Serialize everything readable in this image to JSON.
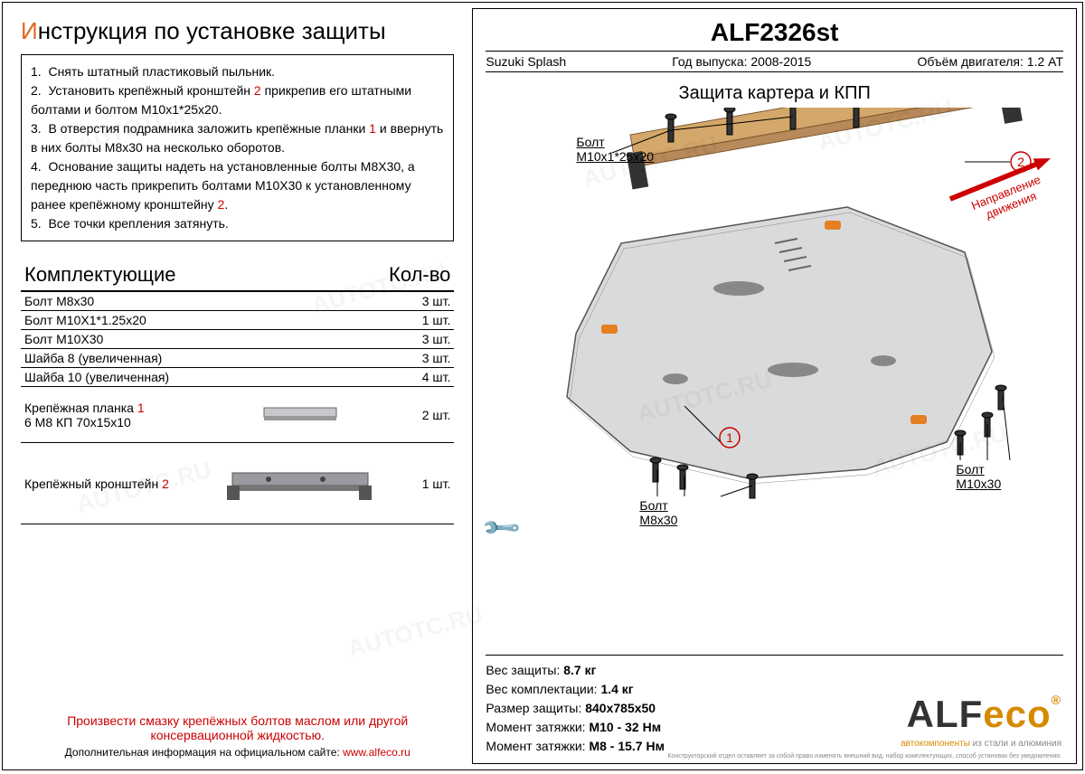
{
  "colors": {
    "accent": "#d62",
    "red": "#c00",
    "brand_grey": "#333",
    "brand_orange": "#d68a00",
    "border": "#000"
  },
  "left": {
    "title_first": "И",
    "title_rest": "нструкция по установке защиты",
    "steps_html": "1.&nbsp;&nbsp;Снять штатный пластиковый пыльник.<br>2.&nbsp;&nbsp;Установить крепёжный кронштейн <span class='red'>2</span> прикрепив его штатными болтами и болтом М10х1*25х20.<br>3.&nbsp;&nbsp;В отверстия подрамника заложить крепёжные планки <span class='red'>1</span> и ввернуть в них болты М8х30 на несколько оборотов.<br>4.&nbsp;&nbsp;Основание защиты надеть на установленные болты М8Х30, а переднюю часть прикрепить болтами М10Х30 к установленному ранее крепёжному кронштейну <span class='red'>2</span>.<br>5.&nbsp;&nbsp;Все точки крепления затянуть.",
    "parts_header_left": "Комплектующие",
    "parts_header_right": "Кол-во",
    "parts": [
      {
        "name": "Болт М8х30",
        "qty": "3 шт."
      },
      {
        "name": "Болт М10Х1*1.25х20",
        "qty": "1 шт."
      },
      {
        "name": "Болт М10Х30",
        "qty": "3 шт."
      },
      {
        "name": "Шайба 8 (увеличенная)",
        "qty": "3 шт."
      },
      {
        "name": "Шайба 10 (увеличенная)",
        "qty": "4 шт."
      }
    ],
    "parts_img": [
      {
        "name_html": "Крепёжная планка <span class='red'>1</span><br>6 М8 КП 70х15х10",
        "qty": "2 шт.",
        "svg": "bar"
      },
      {
        "name_html": "Крепёжный кронштейн <span class='red'>2</span>",
        "qty": "1 шт.",
        "svg": "bracket"
      }
    ],
    "footer_warn": "Произвести смазку крепёжных болтов маслом или другой консервационной жидкостью.",
    "footer_site_prefix": "Дополнительная информация на официальном сайте: ",
    "footer_site_link": "www.alfeco.ru"
  },
  "right": {
    "code": "ALF2326st",
    "meta": {
      "vehicle": "Suzuki Splash",
      "year_label": "Год выпуска:",
      "year": "2008-2015",
      "engine_label": "Объём двигателя:",
      "engine": "1.2 AT"
    },
    "subtitle": "Защита картера и КПП",
    "direction_label": "Направление\nдвижения",
    "callouts": {
      "bolt1": {
        "label": "Болт",
        "spec": "М10х1*25х20"
      },
      "bolt2": {
        "label": "Болт",
        "spec": "М8х30"
      },
      "bolt3": {
        "label": "Болт",
        "spec": "М10х30"
      },
      "marker1": "1",
      "marker2": "2"
    },
    "specs": [
      {
        "label": "Вес защиты:",
        "value": "8.7 кг"
      },
      {
        "label": "Вес комплектации:",
        "value": "1.4 кг"
      },
      {
        "label": "Размер защиты:",
        "value": "840х785х50"
      },
      {
        "label": "Момент затяжки:",
        "value": "М10 - 32 Нм"
      },
      {
        "label": "Момент затяжки:",
        "value": "М8 - 15.7 Нм"
      }
    ],
    "brand_main": "ALF",
    "brand_eco": "eco",
    "brand_sub_orange": "автокомпоненты",
    "brand_sub_grey": " из стали и алюминия",
    "fine_print": "Конструкторский отдел оставляет за собой право изменять внешний вид, набор комплектующих, способ установки без уведомления."
  },
  "watermark": "AUTOTC.RU"
}
